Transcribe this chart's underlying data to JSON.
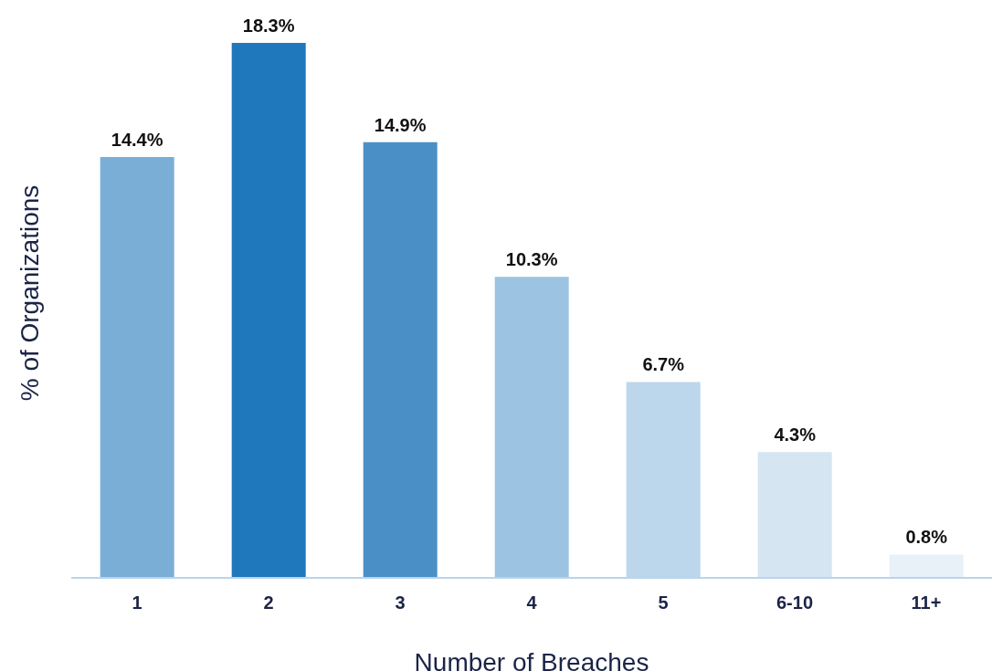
{
  "chart_data": {
    "type": "bar",
    "xlabel": "Number of Breaches",
    "ylabel": "% of Organizations",
    "categories": [
      "1",
      "2",
      "3",
      "4",
      "5",
      "6-10",
      "11+"
    ],
    "values": [
      14.4,
      18.3,
      14.9,
      10.3,
      6.7,
      4.3,
      0.8
    ],
    "colors": [
      "#7aaed6",
      "#1f77bc",
      "#4a90c6",
      "#9cc3e1",
      "#bcd6eb",
      "#d5e5f2",
      "#e8f1f8"
    ],
    "value_labels": [
      "14.4%",
      "18.3%",
      "14.9%",
      "10.3%",
      "6.7%",
      "4.3%",
      "0.8%"
    ],
    "grid": false,
    "legend": false
  }
}
